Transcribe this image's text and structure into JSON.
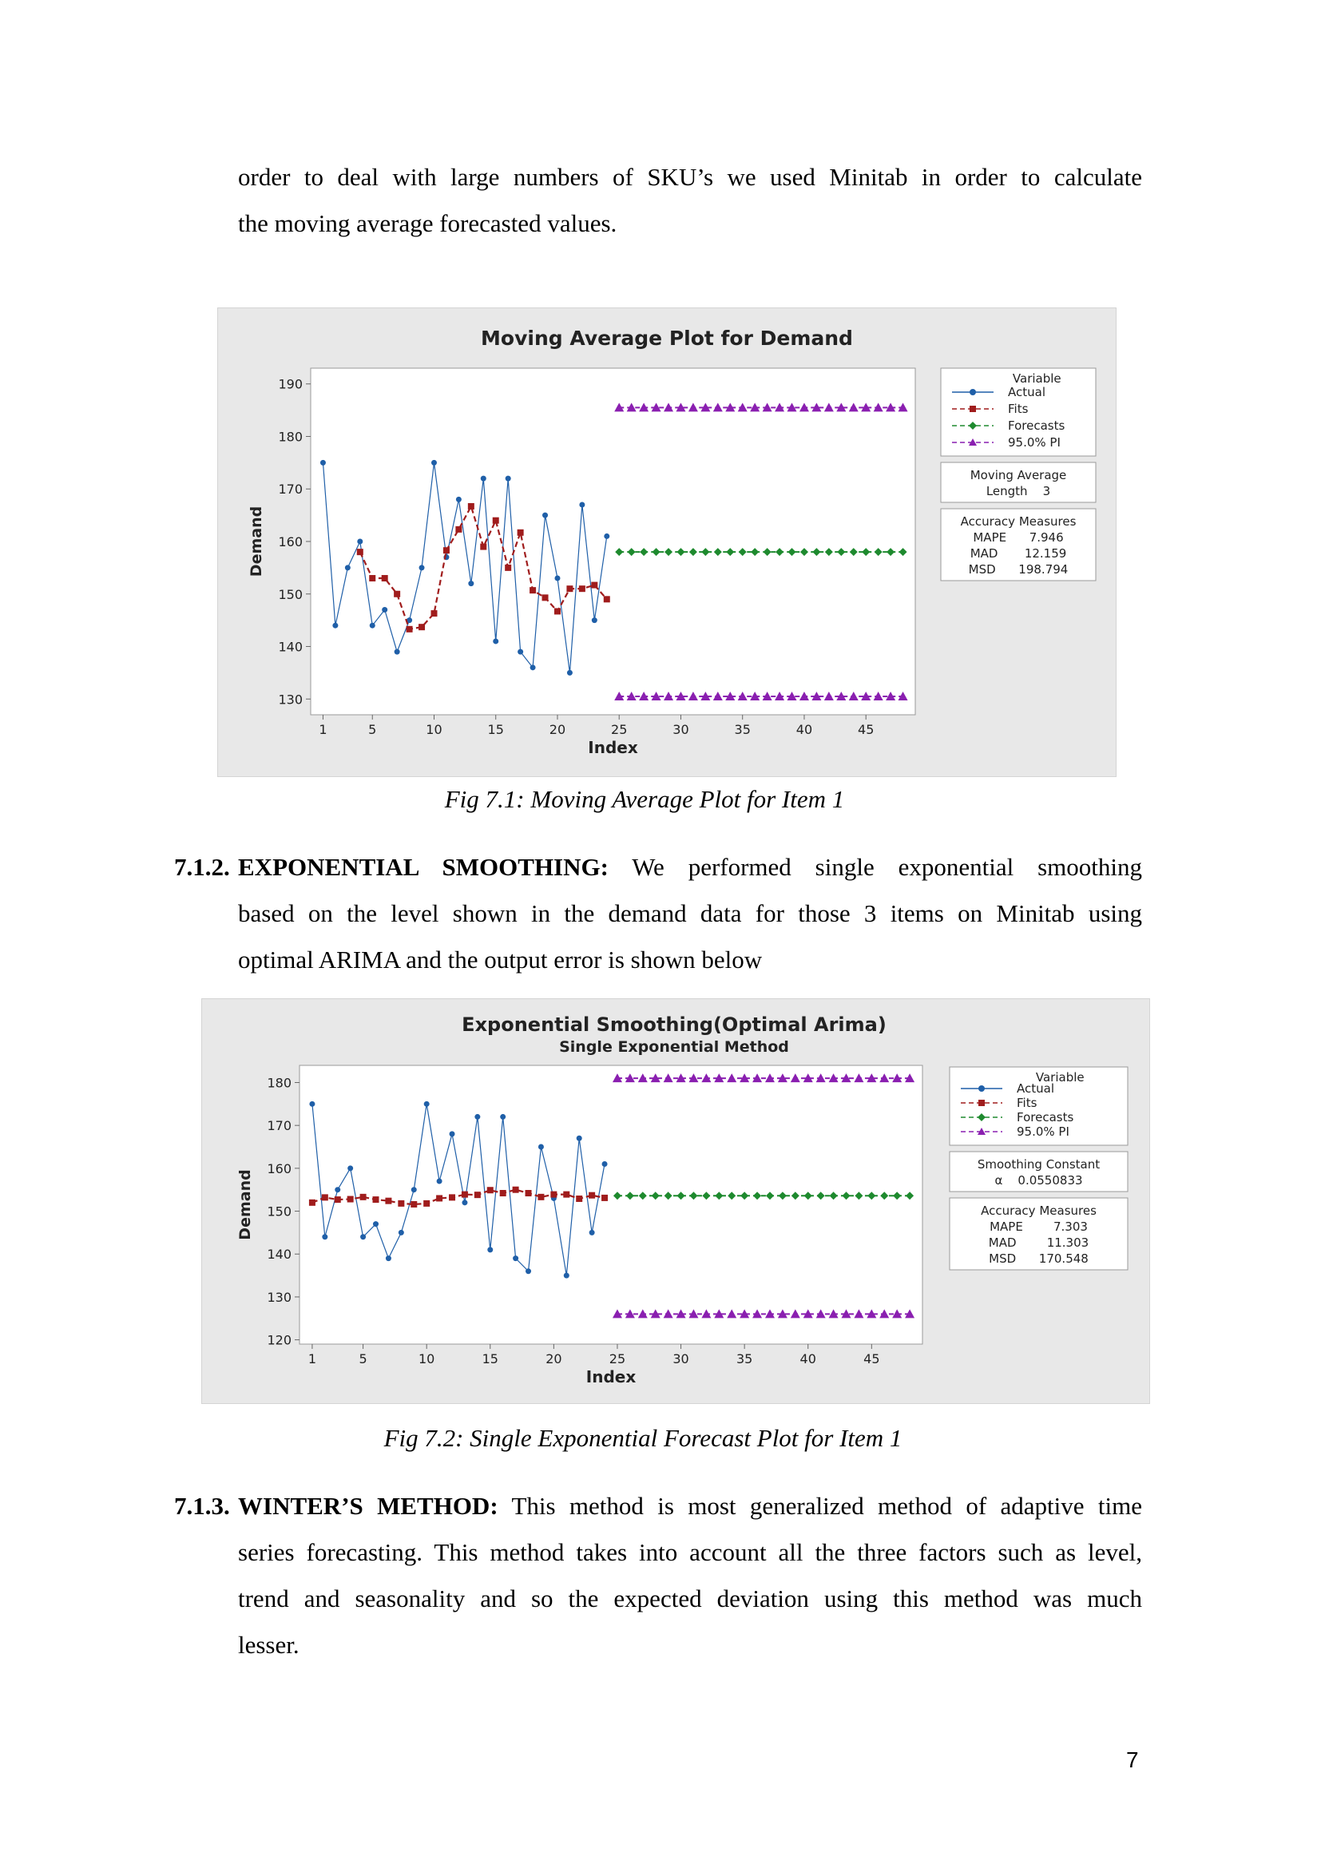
{
  "intro": {
    "line1": "order to deal with large numbers of SKU’s we used Minitab in order to calculate",
    "line2": "the moving average forecasted values."
  },
  "fig1": {
    "caption": "Fig 7.1: Moving Average Plot for Item 1"
  },
  "section_712": {
    "number": "7.1.2.",
    "title": "EXPONENTIAL SMOOTHING:",
    "line1_rest": "We performed single exponential smoothing",
    "line2": "based on the level shown in the demand data for those 3 items on Minitab using",
    "line3": "optimal ARIMA and the output error is shown below"
  },
  "fig2": {
    "caption": "Fig 7.2: Single Exponential Forecast Plot for Item 1"
  },
  "section_713": {
    "number": "7.1.3.",
    "title": "WINTER’S METHOD:",
    "line1_rest": "This method is most generalized method of adaptive time",
    "line2": "series forecasting. This method takes into account all the three factors such as level,",
    "line3": "trend and seasonality and so the expected deviation using this method was much",
    "line4": "lesser."
  },
  "page_number": "7",
  "chart_data": [
    {
      "type": "line",
      "title": "Moving Average Plot for Demand",
      "xlabel": "Index",
      "ylabel": "Demand",
      "xlim": [
        0,
        49
      ],
      "ylim": [
        127,
        193
      ],
      "x_ticks": [
        1,
        5,
        10,
        15,
        20,
        25,
        30,
        35,
        40,
        45
      ],
      "y_ticks": [
        130,
        140,
        150,
        160,
        170,
        180,
        190
      ],
      "legend": {
        "title": "Variable",
        "entries": [
          "Actual",
          "Fits",
          "Forecasts",
          "95.0% PI"
        ],
        "placement": "right"
      },
      "info_boxes": [
        {
          "lines": [
            "Moving Average",
            "Length    3"
          ]
        },
        {
          "lines": [
            "Accuracy Measures",
            "MAPE      7.946",
            "MAD       12.159",
            "MSD      198.794"
          ]
        }
      ],
      "series": [
        {
          "name": "Actual",
          "color": "#1f5fa8",
          "marker": "circle",
          "style": "solid",
          "x": [
            1,
            2,
            3,
            4,
            5,
            6,
            7,
            8,
            9,
            10,
            11,
            12,
            13,
            14,
            15,
            16,
            17,
            18,
            19,
            20,
            21,
            22,
            23,
            24
          ],
          "y": [
            175,
            144,
            155,
            160,
            144,
            147,
            139,
            145,
            155,
            175,
            157,
            168,
            152,
            172,
            141,
            172,
            139,
            136,
            165,
            153,
            135,
            167,
            145,
            161
          ]
        },
        {
          "name": "Fits",
          "color": "#a01c1c",
          "marker": "square",
          "style": "dashed",
          "x": [
            4,
            5,
            6,
            7,
            8,
            9,
            10,
            11,
            12,
            13,
            14,
            15,
            16,
            17,
            18,
            19,
            20,
            21,
            22,
            23,
            24
          ],
          "y": [
            158,
            153,
            153,
            150,
            143.3,
            143.7,
            146.3,
            158.3,
            162.3,
            166.7,
            159,
            164,
            155,
            161.7,
            150.7,
            149.3,
            146.7,
            151,
            151,
            151.7,
            149
          ]
        },
        {
          "name": "Forecasts",
          "color": "#1e8a2e",
          "marker": "diamond",
          "style": "dashed",
          "x_range": [
            25,
            48
          ],
          "y": 158
        },
        {
          "name": "95.0% PI",
          "color": "#8a1fb0",
          "marker": "triangle",
          "style": "dashed",
          "x_range": [
            25,
            48
          ],
          "upper": 185.5,
          "lower": 130.5
        }
      ]
    },
    {
      "type": "line",
      "title": "Exponential Smoothing(Optimal Arima)",
      "subtitle": "Single Exponential Method",
      "xlabel": "Index",
      "ylabel": "Demand",
      "xlim": [
        0,
        49
      ],
      "ylim": [
        119,
        184
      ],
      "x_ticks": [
        1,
        5,
        10,
        15,
        20,
        25,
        30,
        35,
        40,
        45
      ],
      "y_ticks": [
        120,
        130,
        140,
        150,
        160,
        170,
        180
      ],
      "legend": {
        "title": "Variable",
        "entries": [
          "Actual",
          "Fits",
          "Forecasts",
          "95.0% PI"
        ],
        "placement": "right"
      },
      "info_boxes": [
        {
          "lines": [
            "Smoothing Constant",
            "α    0.0550833"
          ]
        },
        {
          "lines": [
            "Accuracy Measures",
            "MAPE        7.303",
            "MAD        11.303",
            "MSD      170.548"
          ]
        }
      ],
      "series": [
        {
          "name": "Actual",
          "color": "#1f5fa8",
          "marker": "circle",
          "style": "solid",
          "x": [
            1,
            2,
            3,
            4,
            5,
            6,
            7,
            8,
            9,
            10,
            11,
            12,
            13,
            14,
            15,
            16,
            17,
            18,
            19,
            20,
            21,
            22,
            23,
            24
          ],
          "y": [
            175,
            144,
            155,
            160,
            144,
            147,
            139,
            145,
            155,
            175,
            157,
            168,
            152,
            172,
            141,
            172,
            139,
            136,
            165,
            153,
            135,
            167,
            145,
            161
          ]
        },
        {
          "name": "Fits",
          "color": "#a01c1c",
          "marker": "square",
          "style": "dashed",
          "x": [
            1,
            2,
            3,
            4,
            5,
            6,
            7,
            8,
            9,
            10,
            11,
            12,
            13,
            14,
            15,
            16,
            17,
            18,
            19,
            20,
            21,
            22,
            23,
            24
          ],
          "y": [
            152,
            153.2,
            152.7,
            152.8,
            153.3,
            152.7,
            152.4,
            151.8,
            151.6,
            151.8,
            153,
            153.2,
            153.9,
            153.8,
            154.9,
            154.2,
            155,
            154.2,
            153.3,
            153.9,
            153.9,
            152.9,
            153.7,
            153.1
          ]
        },
        {
          "name": "Forecasts",
          "color": "#1e8a2e",
          "marker": "diamond",
          "style": "dashed",
          "x_range": [
            25,
            48
          ],
          "y": 153.6
        },
        {
          "name": "95.0% PI",
          "color": "#8a1fb0",
          "marker": "triangle",
          "style": "dashed",
          "x_range": [
            25,
            48
          ],
          "upper": 181,
          "lower": 126
        }
      ]
    }
  ]
}
